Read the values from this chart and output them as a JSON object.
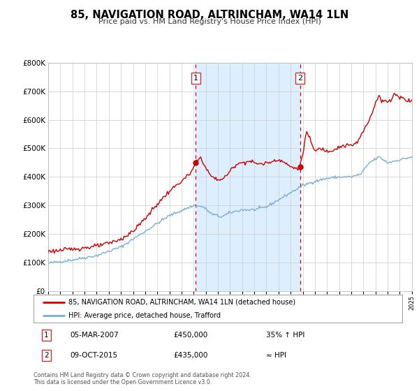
{
  "title": "85, NAVIGATION ROAD, ALTRINCHAM, WA14 1LN",
  "subtitle": "Price paid vs. HM Land Registry's House Price Index (HPI)",
  "legend_line1": "85, NAVIGATION ROAD, ALTRINCHAM, WA14 1LN (detached house)",
  "legend_line2": "HPI: Average price, detached house, Trafford",
  "annotation1_label": "1",
  "annotation1_date": "05-MAR-2007",
  "annotation1_price": "£450,000",
  "annotation1_hpi": "35% ↑ HPI",
  "annotation2_label": "2",
  "annotation2_date": "09-OCT-2015",
  "annotation2_price": "£435,000",
  "annotation2_hpi": "≈ HPI",
  "footnote1": "Contains HM Land Registry data © Crown copyright and database right 2024.",
  "footnote2": "This data is licensed under the Open Government Licence v3.0.",
  "sale1_year": 2007.18,
  "sale1_value": 450000,
  "sale2_year": 2015.77,
  "sale2_value": 435000,
  "red_line_color": "#cc0000",
  "blue_line_color": "#7ab0d4",
  "shade_color": "#ddeeff",
  "ylim_min": 0,
  "ylim_max": 800000,
  "background_color": "#ffffff",
  "grid_color": "#cccccc"
}
